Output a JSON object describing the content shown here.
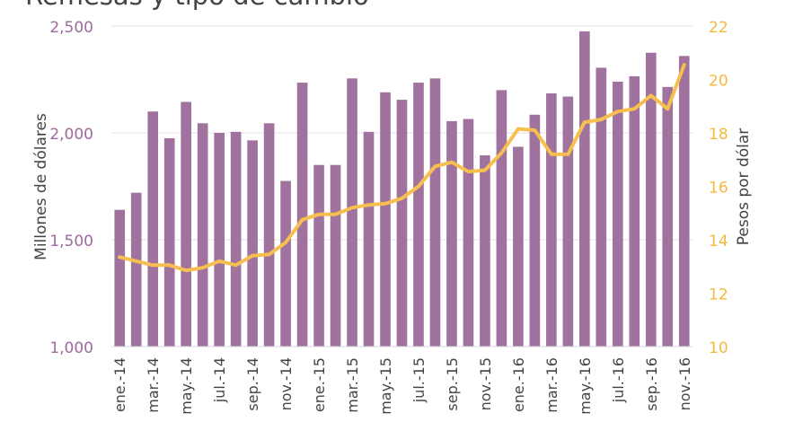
{
  "chart_data": {
    "type": "bar",
    "title": "Remesas y tipo de cambio",
    "xlabel": "",
    "ylabel": "Millones de dólares",
    "y2label": "Pesos por dólar",
    "ylim": [
      1000,
      2500
    ],
    "y2lim": [
      10,
      22
    ],
    "yticks": [
      "1,000",
      "1,500",
      "2,000",
      "2,500"
    ],
    "y2ticks": [
      "10",
      "12",
      "14",
      "16",
      "18",
      "20",
      "22"
    ],
    "categories": [
      "ene.-14",
      "feb.-14",
      "mar.-14",
      "abr.-14",
      "may.-14",
      "jun.-14",
      "jul.-14",
      "ago.-14",
      "sep.-14",
      "oct.-14",
      "nov.-14",
      "dic.-14",
      "ene.-15",
      "feb.-15",
      "mar.-15",
      "abr.-15",
      "may.-15",
      "jun.-15",
      "jul.-15",
      "ago.-15",
      "sep.-15",
      "oct.-15",
      "nov.-15",
      "dic.-15",
      "ene.-16",
      "feb.-16",
      "mar.-16",
      "abr.-16",
      "may.-16",
      "jun.-16",
      "jul.-16",
      "ago.-16",
      "sep.-16",
      "oct.-16",
      "nov.-16"
    ],
    "tick_labels": [
      "ene.-14",
      "mar.-14",
      "may.-14",
      "jul.-14",
      "sep.-14",
      "nov.-14",
      "ene.-15",
      "mar.-15",
      "may.-15",
      "jul.-15",
      "sep.-15",
      "nov.-15",
      "ene.-16",
      "mar.-16",
      "may.-16",
      "jul.-16",
      "sep.-16",
      "nov.-16"
    ],
    "series": [
      {
        "axis": "left",
        "kind": "bar",
        "color": "#a0739e",
        "values": [
          1640,
          1720,
          2100,
          1975,
          2145,
          2045,
          2000,
          2005,
          1965,
          2045,
          1775,
          2235,
          1850,
          1850,
          2255,
          2005,
          2190,
          2155,
          2235,
          2255,
          2055,
          2065,
          1895,
          2200,
          1935,
          2085,
          2185,
          2170,
          2475,
          2305,
          2240,
          2265,
          2375,
          2215,
          2360
        ]
      },
      {
        "axis": "right",
        "kind": "line",
        "color": "#f7bf4f",
        "values": [
          13.35,
          13.2,
          13.05,
          13.05,
          12.85,
          12.95,
          13.2,
          13.05,
          13.4,
          13.45,
          13.9,
          14.75,
          14.95,
          14.95,
          15.2,
          15.3,
          15.35,
          15.55,
          16.0,
          16.75,
          16.9,
          16.55,
          16.6,
          17.25,
          18.15,
          18.1,
          17.2,
          17.2,
          18.4,
          18.5,
          18.8,
          18.9,
          19.4,
          18.9,
          20.55
        ]
      }
    ],
    "grid": true,
    "colors": {
      "left_axis": "#9e6b9c",
      "right_axis": "#f5b93d",
      "grid": "#e3e3e3",
      "tick_text": "#444444"
    }
  }
}
